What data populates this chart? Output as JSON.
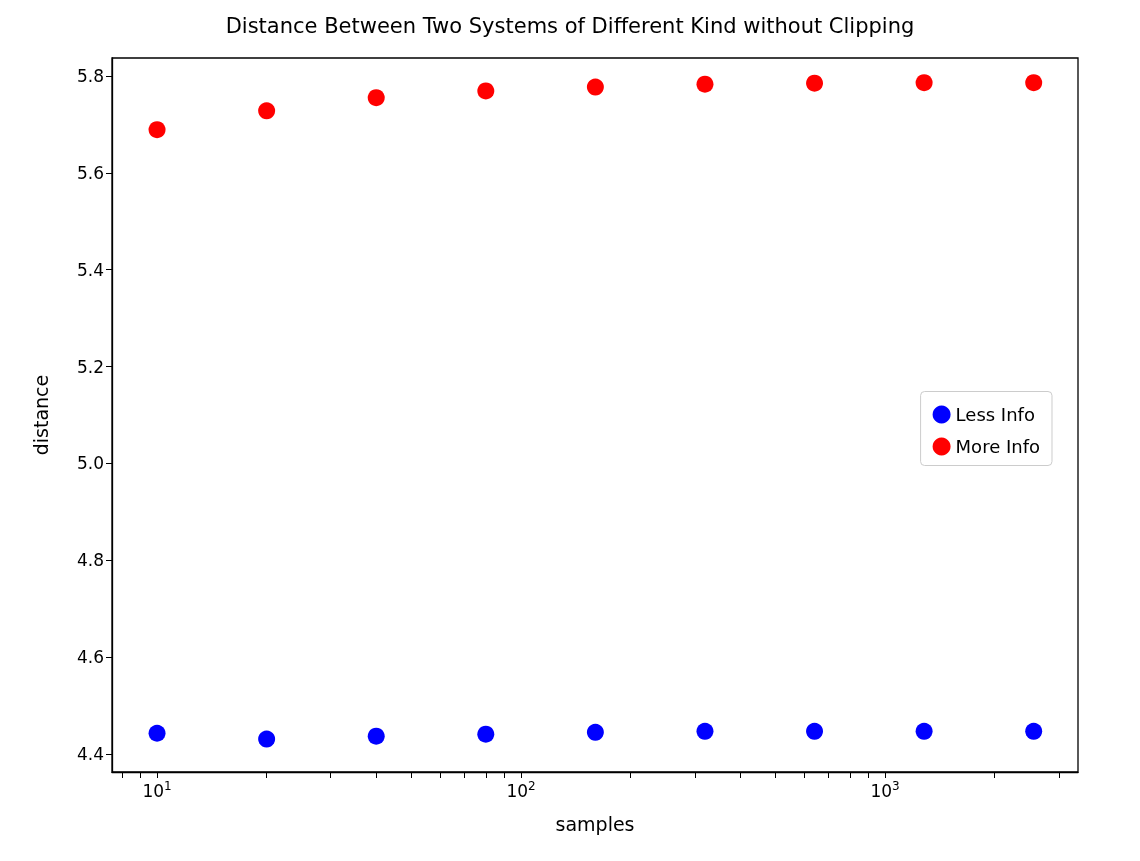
{
  "chart_data": {
    "type": "scatter",
    "title": "Distance Between Two Systems of Different Kind without Clipping",
    "xlabel": "samples",
    "ylabel": "distance",
    "x": [
      10,
      20,
      40,
      80,
      160,
      320,
      640,
      1280,
      2560
    ],
    "series": [
      {
        "name": "Less Info",
        "color": "#0000ff",
        "values": [
          4.443,
          4.431,
          4.437,
          4.441,
          4.445,
          4.447,
          4.447,
          4.447,
          4.447
        ]
      },
      {
        "name": "More Info",
        "color": "#ff0000",
        "values": [
          5.689,
          5.728,
          5.755,
          5.769,
          5.777,
          5.783,
          5.785,
          5.786,
          5.786
        ]
      }
    ],
    "log": "x",
    "xlim": [
      7.52,
      3388
    ],
    "ylim": [
      4.363,
      5.837
    ],
    "xticks": [
      {
        "value": 8,
        "label": null
      },
      {
        "value": 9,
        "label": null
      },
      {
        "value": 10,
        "label": "10$^{1}$"
      },
      {
        "value": 20,
        "label": null
      },
      {
        "value": 30,
        "label": null
      },
      {
        "value": 40,
        "label": null
      },
      {
        "value": 50,
        "label": null
      },
      {
        "value": 60,
        "label": null
      },
      {
        "value": 70,
        "label": null
      },
      {
        "value": 80,
        "label": null
      },
      {
        "value": 90,
        "label": null
      },
      {
        "value": 100,
        "label": "10$^{2}$"
      },
      {
        "value": 200,
        "label": null
      },
      {
        "value": 300,
        "label": null
      },
      {
        "value": 400,
        "label": null
      },
      {
        "value": 500,
        "label": null
      },
      {
        "value": 600,
        "label": null
      },
      {
        "value": 700,
        "label": null
      },
      {
        "value": 800,
        "label": null
      },
      {
        "value": 900,
        "label": null
      },
      {
        "value": 1000,
        "label": "10$^{3}$"
      },
      {
        "value": 2000,
        "label": null
      },
      {
        "value": 3000,
        "label": null
      }
    ],
    "yticks": [
      4.4,
      4.6,
      4.8,
      {
        "value": 5,
        "label": "5.0"
      },
      5.2,
      5.4,
      5.6,
      5.8
    ],
    "marker": "circle",
    "legend": "right",
    "grid": false
  }
}
